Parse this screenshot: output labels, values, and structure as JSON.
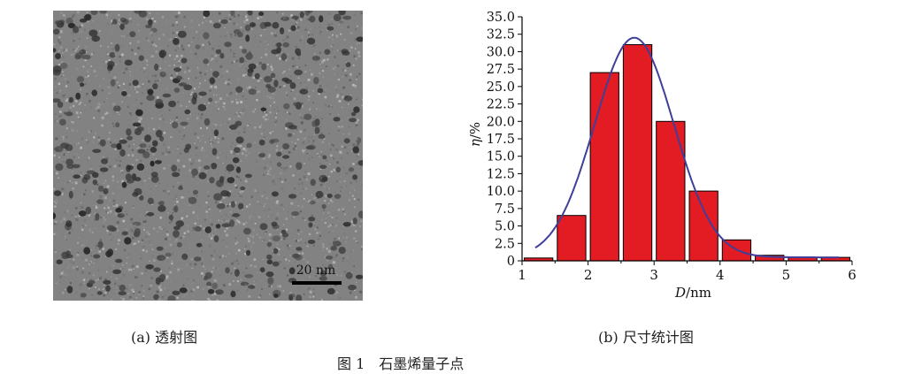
{
  "panel_a": {
    "caption": "(a) 透射图",
    "scale_bar_label": "20 nm"
  },
  "panel_b": {
    "caption": "(b) 尺寸统计图"
  },
  "figure_caption": "图 1　石墨烯量子点",
  "chart_data": {
    "type": "bar",
    "xlabel_italic": "D",
    "xlabel_unit": "/nm",
    "ylabel_italic": "η",
    "ylabel_unit": "/%",
    "xlim": [
      1,
      6
    ],
    "ylim": [
      0,
      35
    ],
    "x_ticks": [
      "1",
      "2",
      "3",
      "4",
      "5",
      "6"
    ],
    "y_ticks": [
      "0",
      "2.5",
      "5.0",
      "7.5",
      "10.0",
      "12.5",
      "15.0",
      "17.5",
      "20.0",
      "22.5",
      "25.0",
      "27.5",
      "30.0",
      "32.5",
      "35.0"
    ],
    "bin_width": 0.5,
    "bars": [
      {
        "center": 1.25,
        "value": 0.4
      },
      {
        "center": 1.75,
        "value": 6.5
      },
      {
        "center": 2.25,
        "value": 27.0
      },
      {
        "center": 2.75,
        "value": 31.0
      },
      {
        "center": 3.25,
        "value": 20.0
      },
      {
        "center": 3.75,
        "value": 10.0
      },
      {
        "center": 4.25,
        "value": 3.0
      },
      {
        "center": 4.75,
        "value": 0.8
      },
      {
        "center": 5.25,
        "value": 0.5
      },
      {
        "center": 5.75,
        "value": 0.5
      }
    ],
    "fit_curve": {
      "type": "gaussian",
      "peak_x": 2.7,
      "peak_y": 32.0,
      "sigma": 0.6,
      "baseline": 0.5,
      "x_range": [
        1.2,
        5.8
      ]
    },
    "grid": false,
    "legend": "none",
    "colors": {
      "bar_fill": "#e31b23",
      "bar_stroke": "#000000",
      "curve": "#3f3f9a",
      "axis": "#000000"
    }
  }
}
